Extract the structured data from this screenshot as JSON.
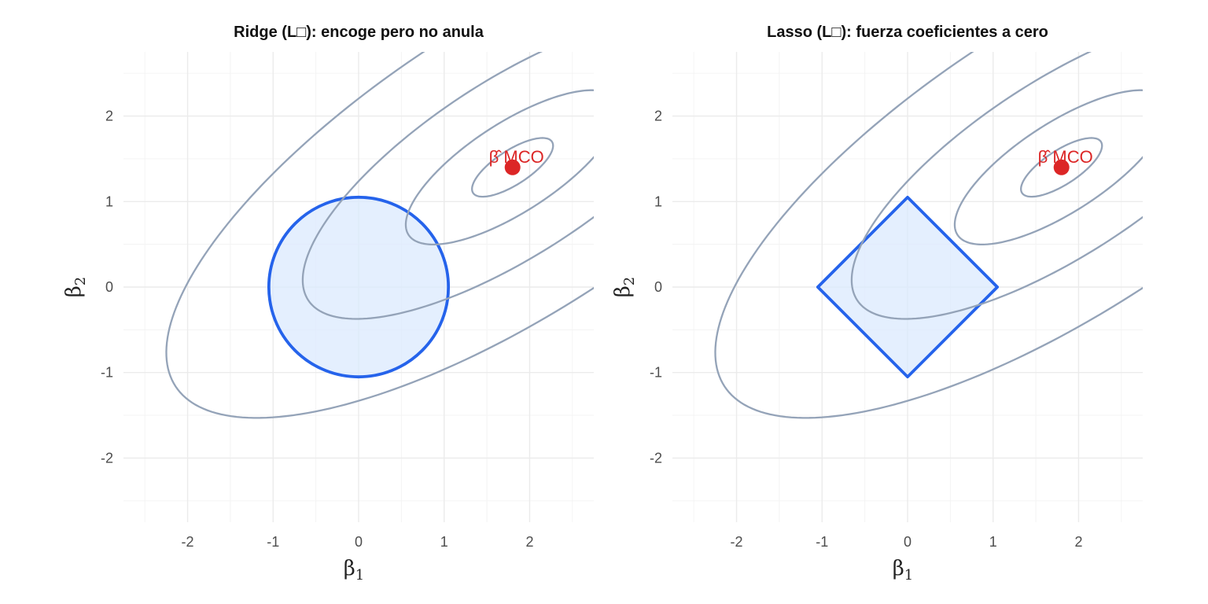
{
  "chart_data": [
    {
      "type": "contour",
      "title": "Ridge (L□): encoge pero no anula",
      "xlabel": "β",
      "xlabel_sub": "1",
      "ylabel": "β",
      "ylabel_sub": "2",
      "xlim": [
        -2.75,
        2.75
      ],
      "ylim": [
        -2.75,
        2.75
      ],
      "x_ticks": [
        -2,
        -1,
        0,
        1,
        2
      ],
      "y_ticks": [
        -2,
        -1,
        0,
        1,
        2
      ],
      "x_tick_labels": [
        "-2",
        "-1",
        "0",
        "1",
        "2"
      ],
      "y_tick_labels": [
        "-2",
        "-1",
        "0",
        "1",
        "2"
      ],
      "grid": true,
      "ols_estimate": {
        "x": 1.8,
        "y": 1.4,
        "label": "β̂ MCO"
      },
      "loss_contours": {
        "center": [
          1.8,
          1.4
        ],
        "angle_deg": 33,
        "semi_axes": [
          [
            0.55,
            0.2
          ],
          [
            1.45,
            0.52
          ],
          [
            2.85,
            1.02
          ],
          [
            4.7,
            1.7
          ]
        ]
      },
      "constraint": {
        "shape": "circle",
        "radius": 1.05
      }
    },
    {
      "type": "contour",
      "title": "Lasso (L□): fuerza coeficientes a cero",
      "xlabel": "β",
      "xlabel_sub": "1",
      "ylabel": "β",
      "ylabel_sub": "2",
      "xlim": [
        -2.75,
        2.75
      ],
      "ylim": [
        -2.75,
        2.75
      ],
      "x_ticks": [
        -2,
        -1,
        0,
        1,
        2
      ],
      "y_ticks": [
        -2,
        -1,
        0,
        1,
        2
      ],
      "x_tick_labels": [
        "-2",
        "-1",
        "0",
        "1",
        "2"
      ],
      "y_tick_labels": [
        "-2",
        "-1",
        "0",
        "1",
        "2"
      ],
      "grid": true,
      "ols_estimate": {
        "x": 1.8,
        "y": 1.4,
        "label": "β̂ MCO"
      },
      "loss_contours": {
        "center": [
          1.8,
          1.4
        ],
        "angle_deg": 33,
        "semi_axes": [
          [
            0.55,
            0.2
          ],
          [
            1.45,
            0.52
          ],
          [
            2.85,
            1.02
          ],
          [
            4.7,
            1.7
          ]
        ]
      },
      "constraint": {
        "shape": "diamond",
        "radius": 1.05
      }
    }
  ],
  "colors": {
    "contour": "#94a3b8",
    "constraint_stroke": "#2563eb",
    "constraint_fill": "#dbeafe",
    "ols_point": "#dc2626",
    "grid": "#ebebeb"
  }
}
